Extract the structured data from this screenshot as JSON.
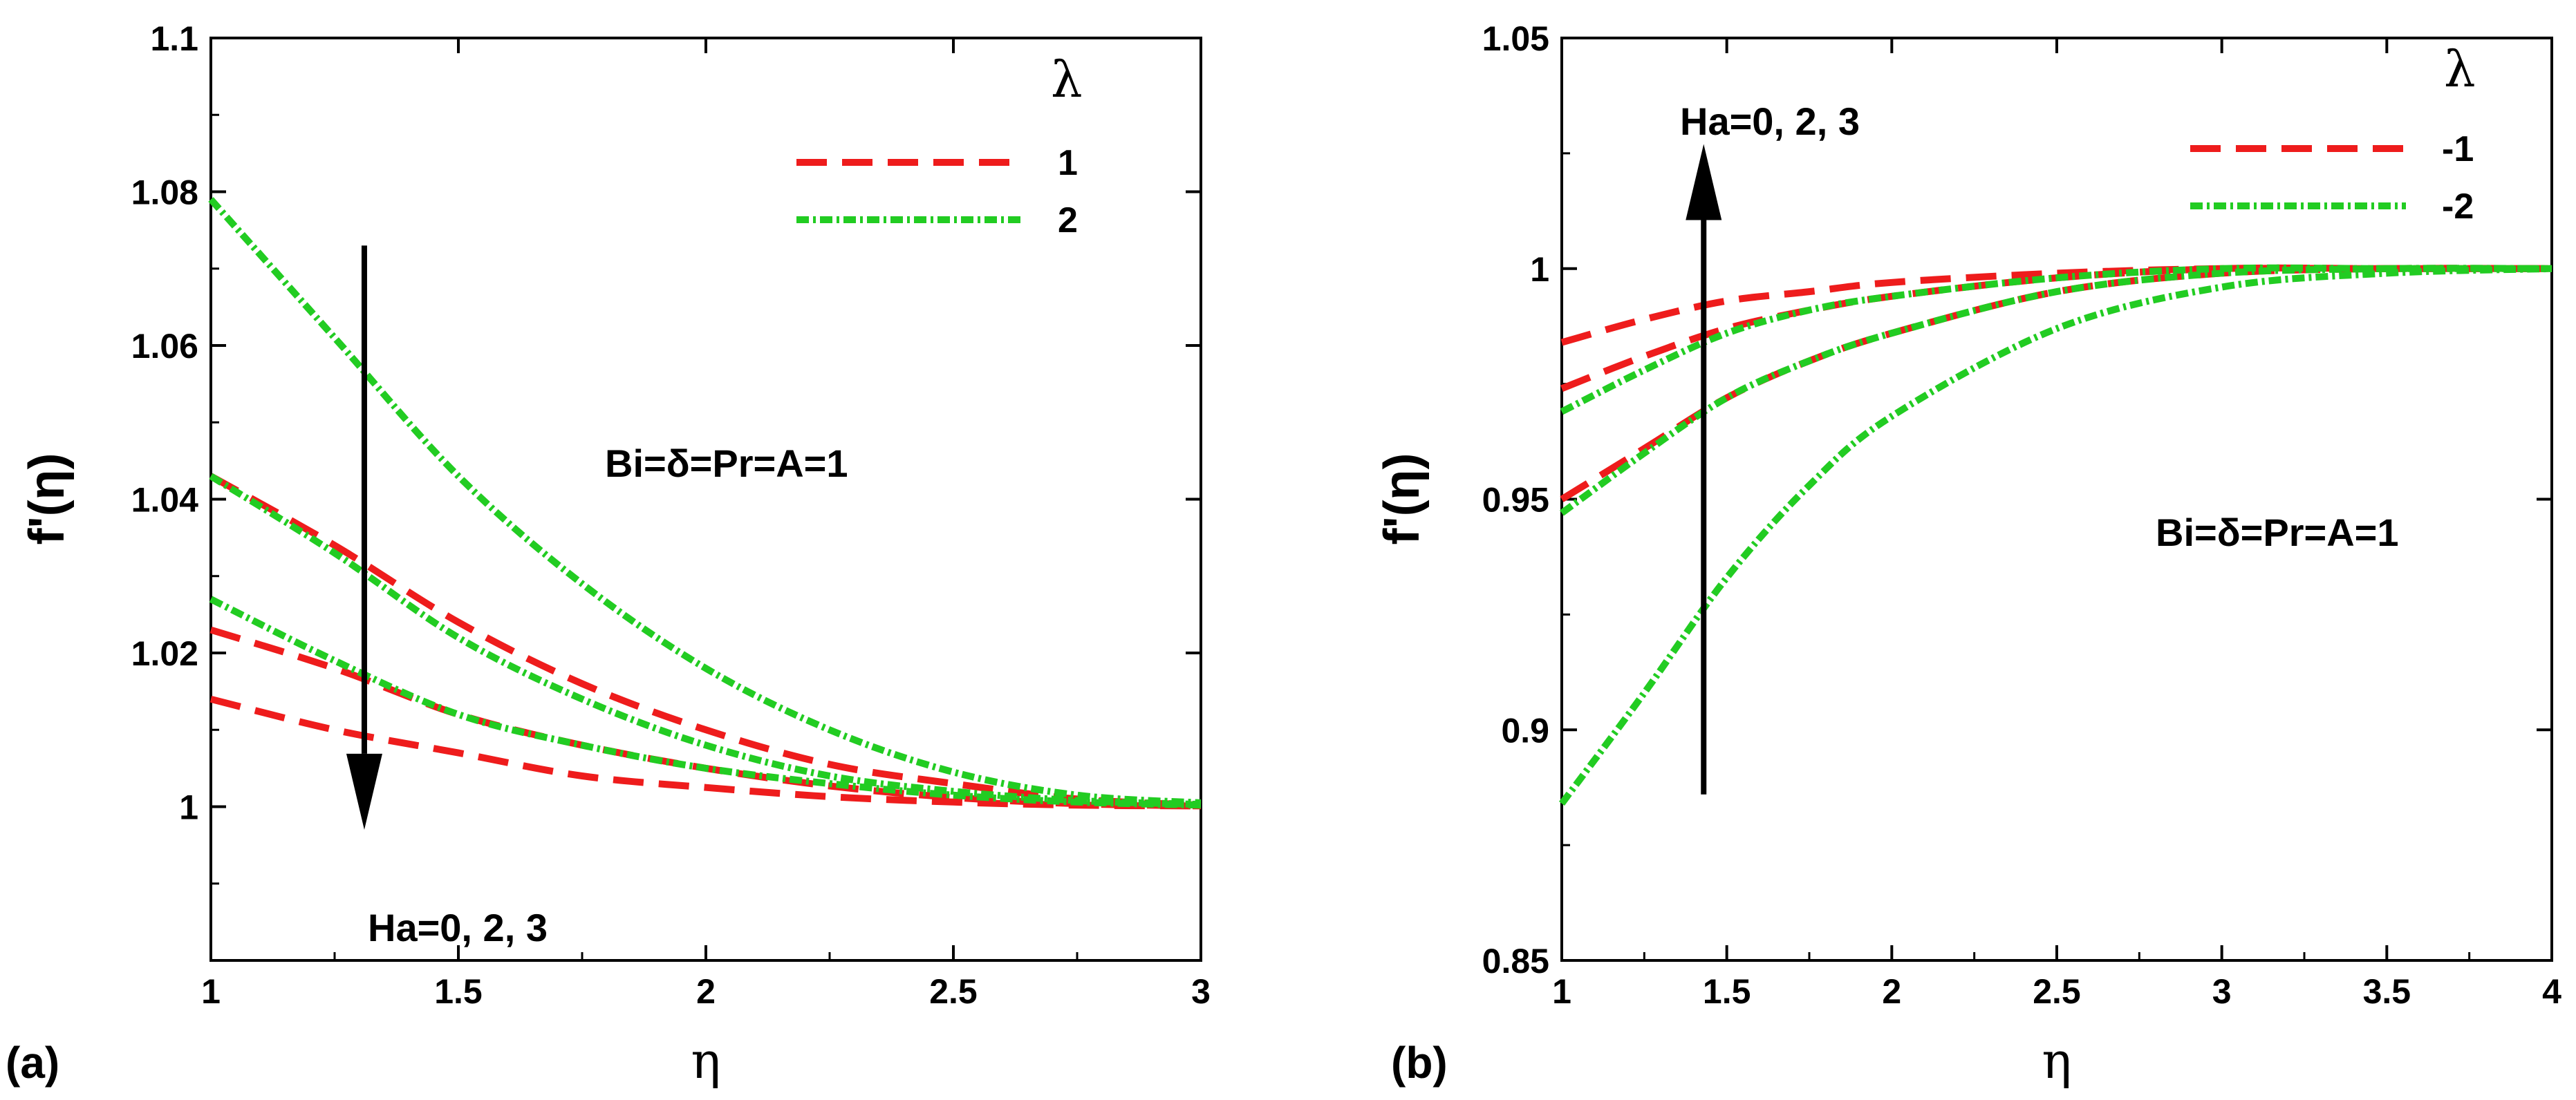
{
  "chart_data": [
    {
      "panel_label": "(a)",
      "type": "line",
      "xlabel": "η",
      "ylabel": "f'(η)",
      "xlim": [
        1,
        3
      ],
      "ylim": [
        0.98,
        1.1
      ],
      "xticks": [
        "1",
        "1.5",
        "2",
        "2.5",
        "3"
      ],
      "yticks": [
        "1",
        "1.02",
        "1.04",
        "1.06",
        "1.08",
        "1.1"
      ],
      "legend_title": "λ",
      "legend": [
        {
          "label": "1",
          "color": "#ee1c1c",
          "style": "dashed"
        },
        {
          "label": "2",
          "color": "#22cc22",
          "style": "dashdot"
        }
      ],
      "annotation_params": "Bi=δ=Pr=A=1",
      "annotation_arrow": "Ha=0, 2, 3",
      "arrow": {
        "from": [
          1.31,
          1.073
        ],
        "to": [
          1.31,
          0.997
        ]
      },
      "series": [
        {
          "name": "λ=1, Ha=0",
          "color": "#ee1c1c",
          "style": "dashed",
          "x": [
            1,
            1.25,
            1.5,
            1.75,
            2,
            2.25,
            2.5,
            2.75,
            3
          ],
          "y": [
            1.043,
            1.034,
            1.024,
            1.016,
            1.01,
            1.0055,
            1.003,
            1.001,
            1.0002
          ]
        },
        {
          "name": "λ=1, Ha=2",
          "color": "#ee1c1c",
          "style": "dashed",
          "x": [
            1,
            1.25,
            1.5,
            1.75,
            2,
            2.25,
            2.5,
            2.75,
            3
          ],
          "y": [
            1.023,
            1.018,
            1.012,
            1.008,
            1.005,
            1.0027,
            1.0012,
            1.0004,
            1.0001
          ]
        },
        {
          "name": "λ=1, Ha=3",
          "color": "#ee1c1c",
          "style": "dashed",
          "x": [
            1,
            1.25,
            1.5,
            1.75,
            2,
            2.25,
            2.5,
            2.75,
            3
          ],
          "y": [
            1.014,
            1.01,
            1.007,
            1.004,
            1.0025,
            1.0013,
            1.0006,
            1.0002,
            1.0001
          ]
        },
        {
          "name": "λ=2, Ha=0",
          "color": "#22cc22",
          "style": "dashdot",
          "x": [
            1,
            1.25,
            1.5,
            1.75,
            2,
            2.25,
            2.5,
            2.75,
            3
          ],
          "y": [
            1.079,
            1.061,
            1.043,
            1.029,
            1.018,
            1.01,
            1.0045,
            1.0015,
            1.0005
          ]
        },
        {
          "name": "λ=2, Ha=2",
          "color": "#22cc22",
          "style": "dashdot",
          "x": [
            1,
            1.25,
            1.5,
            1.75,
            2,
            2.25,
            2.5,
            2.75,
            3
          ],
          "y": [
            1.043,
            1.033,
            1.022,
            1.014,
            1.008,
            1.004,
            1.002,
            1.0008,
            1.0003
          ]
        },
        {
          "name": "λ=2, Ha=3",
          "color": "#22cc22",
          "style": "dashdot",
          "x": [
            1,
            1.25,
            1.5,
            1.75,
            2,
            2.25,
            2.5,
            2.75,
            3
          ],
          "y": [
            1.027,
            1.019,
            1.012,
            1.008,
            1.005,
            1.003,
            1.0015,
            1.0006,
            1.0002
          ]
        }
      ]
    },
    {
      "panel_label": "(b)",
      "type": "line",
      "xlabel": "η",
      "ylabel": "f'(η)",
      "xlim": [
        1,
        4
      ],
      "ylim": [
        0.85,
        1.05
      ],
      "xticks": [
        "1",
        "1.5",
        "2",
        "2.5",
        "3",
        "3.5",
        "4"
      ],
      "yticks": [
        "0.85",
        "0.9",
        "0.95",
        "1",
        "1.05"
      ],
      "legend_title": "λ",
      "legend": [
        {
          "label": "-1",
          "color": "#ee1c1c",
          "style": "dashed"
        },
        {
          "label": "-2",
          "color": "#22cc22",
          "style": "dashdot"
        }
      ],
      "annotation_params": "Bi=δ=Pr=A=1",
      "annotation_arrow": "Ha=0, 2, 3",
      "arrow": {
        "from": [
          1.43,
          0.886
        ],
        "to": [
          1.43,
          1.027
        ]
      },
      "series": [
        {
          "name": "λ=-1, Ha=0",
          "color": "#ee1c1c",
          "style": "dashed",
          "x": [
            1,
            1.25,
            1.5,
            1.75,
            2,
            2.5,
            3,
            3.5,
            4
          ],
          "y": [
            0.95,
            0.961,
            0.972,
            0.98,
            0.986,
            0.995,
            0.999,
            1.0,
            1.0
          ]
        },
        {
          "name": "λ=-1, Ha=2",
          "color": "#ee1c1c",
          "style": "dashed",
          "x": [
            1,
            1.25,
            1.5,
            1.75,
            2,
            2.5,
            3,
            3.5,
            4
          ],
          "y": [
            0.974,
            0.981,
            0.987,
            0.991,
            0.994,
            0.998,
            1.0,
            1.0,
            1.0
          ]
        },
        {
          "name": "λ=-1, Ha=3",
          "color": "#ee1c1c",
          "style": "dashed",
          "x": [
            1,
            1.25,
            1.5,
            1.75,
            2,
            2.5,
            3,
            3.5,
            4
          ],
          "y": [
            0.984,
            0.989,
            0.993,
            0.995,
            0.997,
            0.999,
            1.0,
            1.0,
            1.0
          ]
        },
        {
          "name": "λ=-2, Ha=0",
          "color": "#22cc22",
          "style": "dashdot",
          "x": [
            1,
            1.25,
            1.5,
            1.75,
            2,
            2.5,
            3,
            3.5,
            4
          ],
          "y": [
            0.884,
            0.908,
            0.933,
            0.953,
            0.968,
            0.987,
            0.996,
            0.999,
            1.0
          ]
        },
        {
          "name": "λ=-2, Ha=2",
          "color": "#22cc22",
          "style": "dashdot",
          "x": [
            1,
            1.25,
            1.5,
            1.75,
            2,
            2.5,
            3,
            3.5,
            4
          ],
          "y": [
            0.947,
            0.96,
            0.972,
            0.98,
            0.986,
            0.995,
            0.999,
            1.0,
            1.0
          ]
        },
        {
          "name": "λ=-2, Ha=3",
          "color": "#22cc22",
          "style": "dashdot",
          "x": [
            1,
            1.25,
            1.5,
            1.75,
            2,
            2.5,
            3,
            3.5,
            4
          ],
          "y": [
            0.969,
            0.978,
            0.986,
            0.991,
            0.994,
            0.998,
            1.0,
            1.0,
            1.0
          ]
        }
      ]
    }
  ]
}
